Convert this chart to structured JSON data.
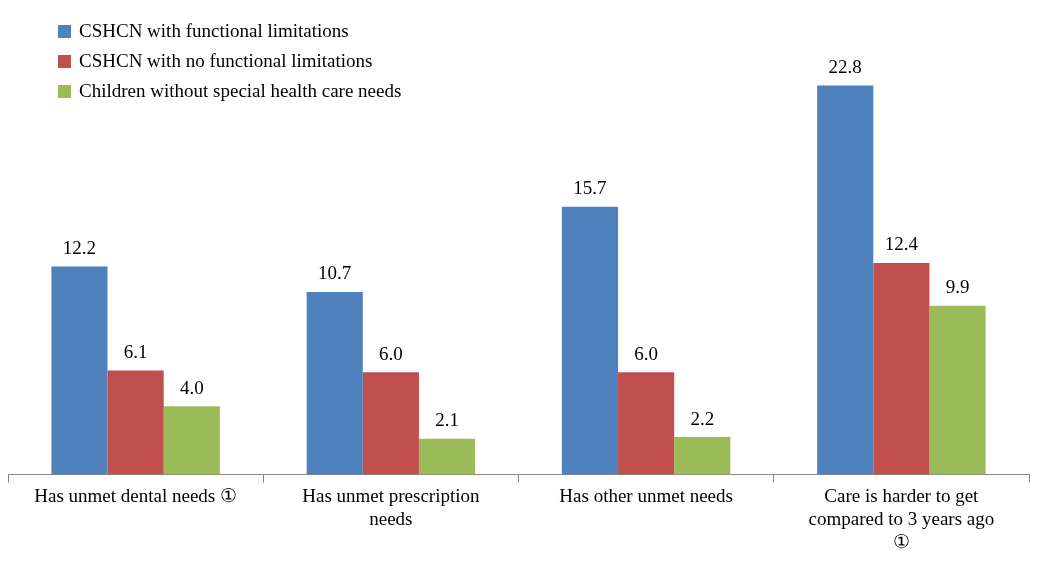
{
  "chart_data": {
    "type": "bar",
    "categories": [
      "Has unmet dental needs ①",
      "Has unmet prescription needs",
      "Has other unmet needs",
      "Care is harder to get compared to 3 years ago ①"
    ],
    "series": [
      {
        "name": "CSHCN with functional limitations",
        "color": "#4f81bd",
        "values": [
          12.2,
          10.7,
          15.7,
          22.8
        ],
        "value_labels": [
          "12.2",
          "10.7",
          "15.7",
          "22.8"
        ]
      },
      {
        "name": "CSHCN with no functional limitations",
        "color": "#c0504d",
        "values": [
          6.1,
          6.0,
          6.0,
          12.4
        ],
        "value_labels": [
          "6.1",
          "6.0",
          "6.0",
          "12.4"
        ]
      },
      {
        "name": "Children without special health care needs",
        "color": "#9bbb59",
        "values": [
          4.0,
          2.1,
          2.2,
          9.9
        ],
        "value_labels": [
          "4.0",
          "2.1",
          "2.2",
          "9.9"
        ]
      }
    ],
    "legend": "top left",
    "grid": false
  }
}
